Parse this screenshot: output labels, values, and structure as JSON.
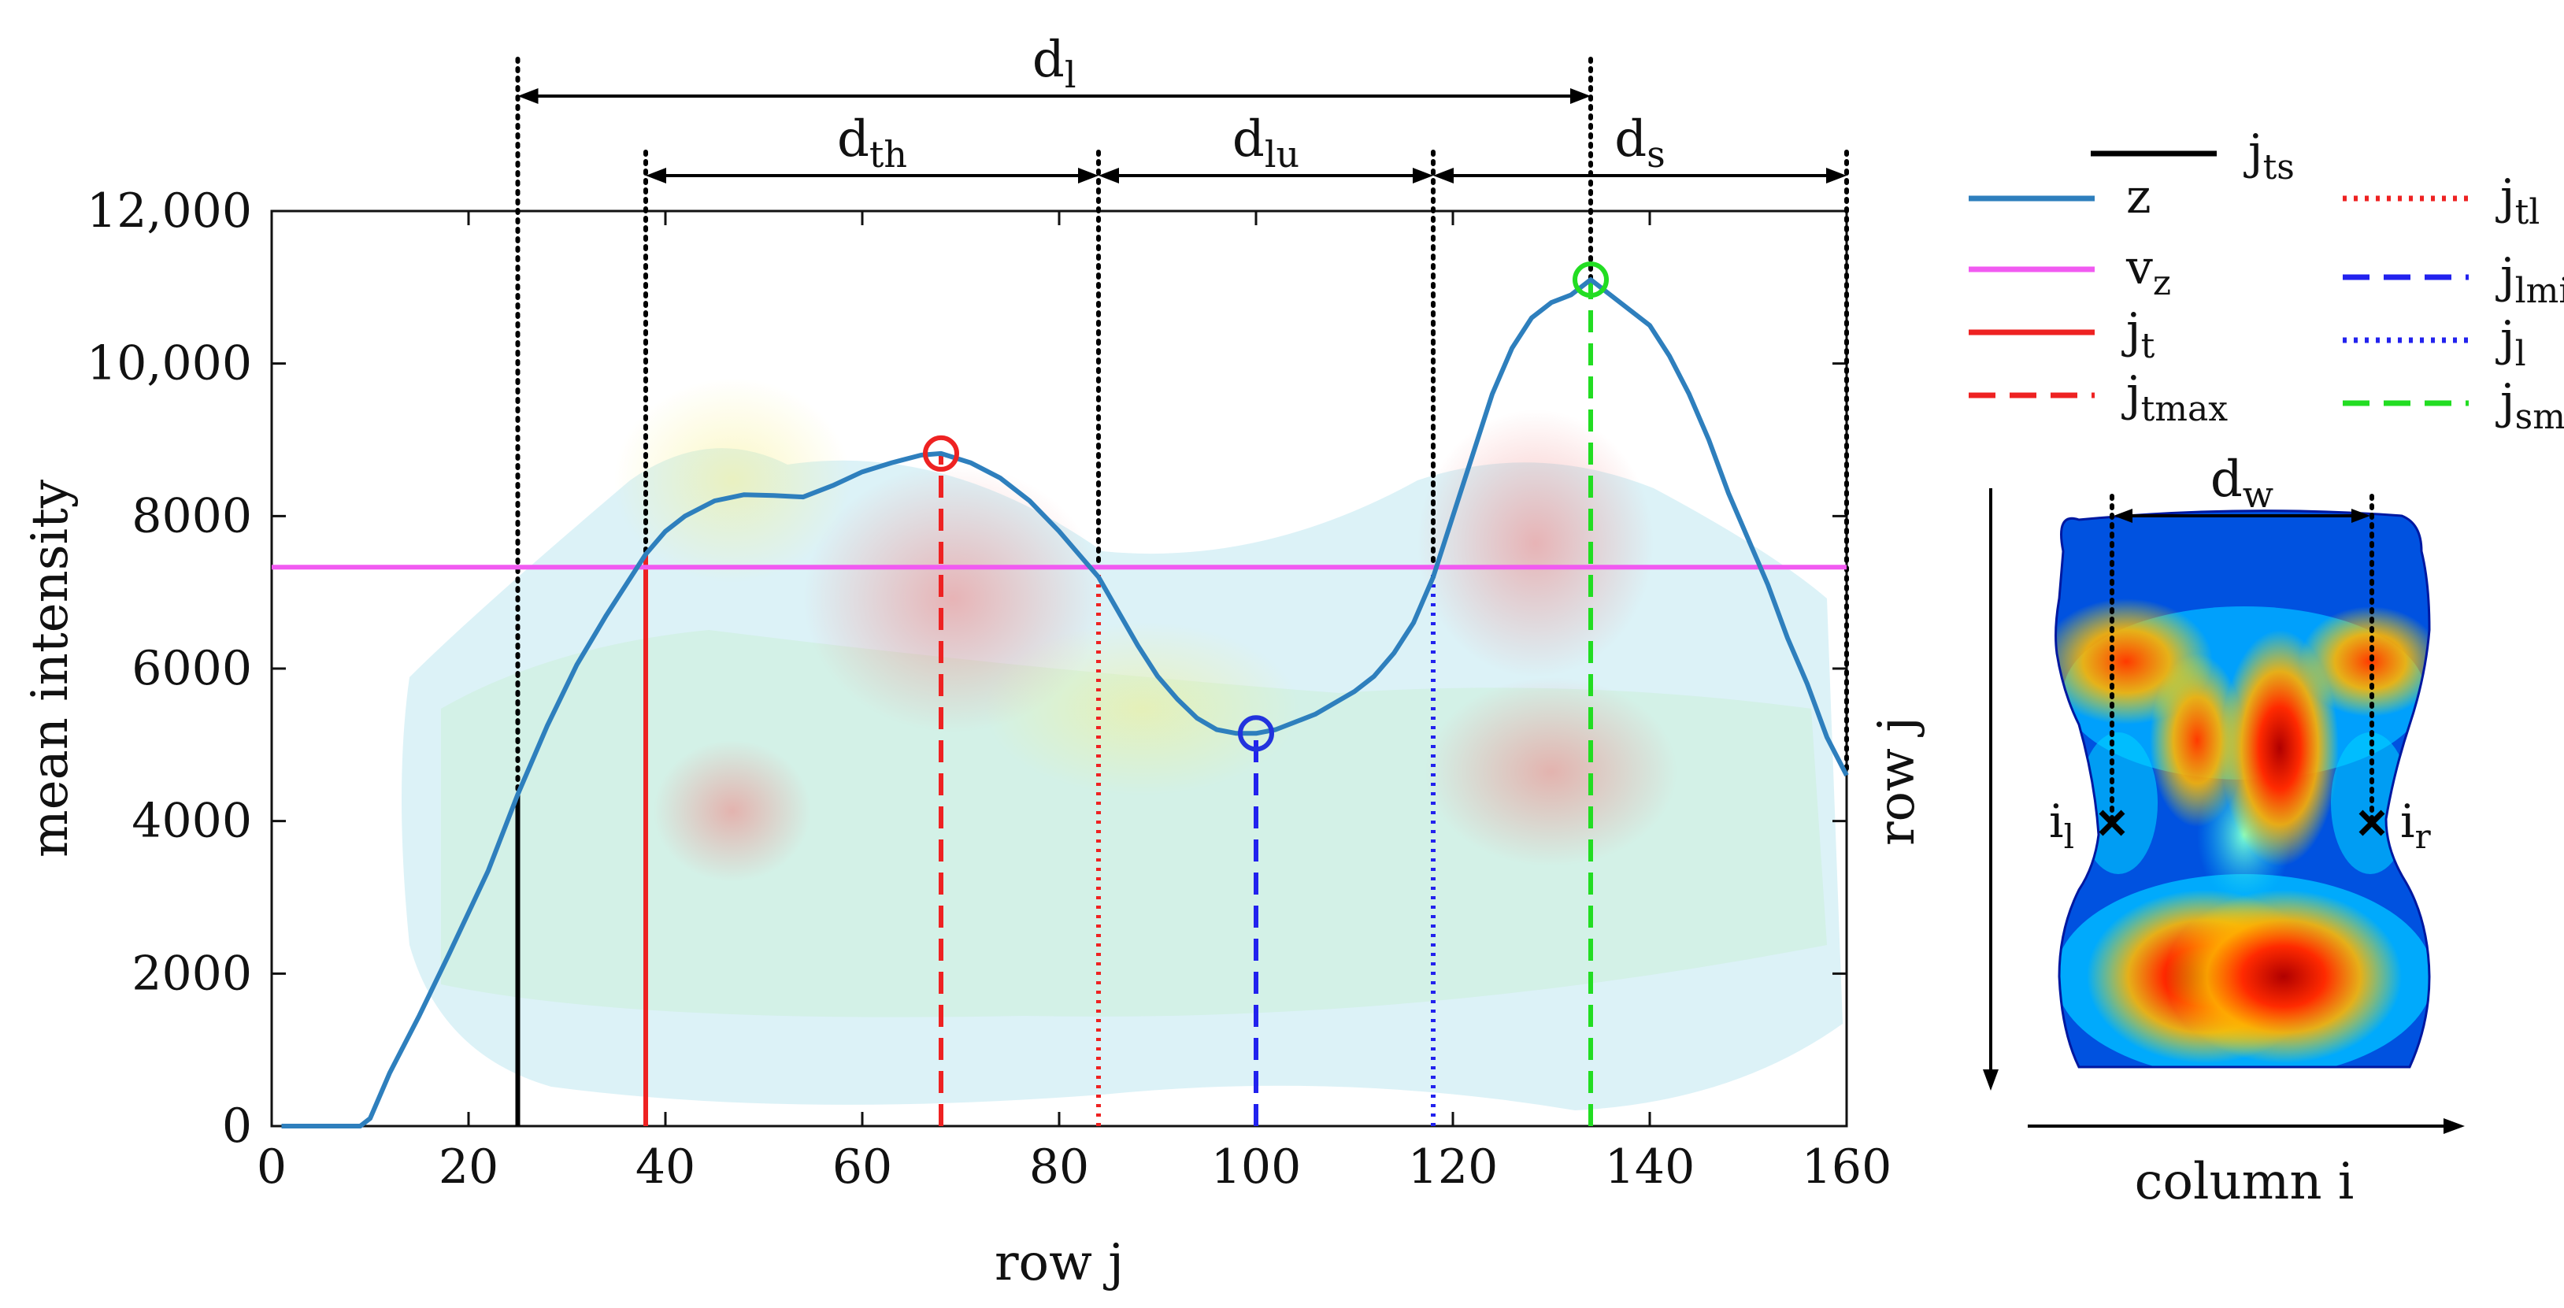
{
  "chart_data": [
    {
      "type": "line",
      "title": "",
      "xlabel": "row j",
      "ylabel": "mean intensity",
      "xlim": [
        0,
        160
      ],
      "ylim": [
        0,
        12000
      ],
      "xticks": [
        0,
        20,
        40,
        60,
        80,
        100,
        120,
        140,
        160
      ],
      "yticks": [
        0,
        2000,
        4000,
        6000,
        8000,
        10000,
        12000
      ],
      "xtick_labels": [
        "0",
        "20",
        "40",
        "60",
        "80",
        "100",
        "120",
        "140",
        "160"
      ],
      "ytick_labels": [
        "0",
        "2000",
        "4000",
        "6000",
        "8000",
        "10,000",
        "12,000"
      ],
      "grid": false,
      "series": [
        {
          "name": "z",
          "color": "#2e7fbd",
          "x": [
            1,
            6,
            9,
            10,
            12,
            15,
            18,
            20,
            22,
            25,
            28,
            31,
            34,
            36,
            38,
            40,
            42,
            45,
            48,
            51,
            54,
            57,
            60,
            63,
            66,
            68,
            71,
            74,
            77,
            80,
            82,
            84,
            86,
            88,
            90,
            92,
            94,
            96,
            98,
            100,
            102,
            104,
            106,
            108,
            110,
            112,
            114,
            116,
            118,
            120,
            122,
            124,
            126,
            128,
            130,
            132,
            134,
            136,
            138,
            140,
            142,
            144,
            146,
            148,
            150,
            152,
            154,
            156,
            158,
            160
          ],
          "y": [
            0,
            0,
            0,
            100,
            700,
            1450,
            2250,
            2800,
            3350,
            4350,
            5250,
            6050,
            6700,
            7100,
            7500,
            7800,
            8000,
            8200,
            8280,
            8270,
            8250,
            8400,
            8580,
            8700,
            8800,
            8820,
            8700,
            8500,
            8200,
            7800,
            7500,
            7200,
            6750,
            6300,
            5900,
            5600,
            5350,
            5200,
            5150,
            5150,
            5200,
            5300,
            5400,
            5550,
            5700,
            5900,
            6200,
            6600,
            7200,
            8000,
            8800,
            9600,
            10200,
            10600,
            10800,
            10900,
            11100,
            10900,
            10700,
            10500,
            10100,
            9600,
            9000,
            8300,
            7700,
            7100,
            6400,
            5800,
            5100,
            4600
          ]
        },
        {
          "name": "v_z",
          "color": "#f15af1",
          "type": "hline",
          "y": 7330
        },
        {
          "name": "j_ts",
          "color": "#000000",
          "style": "solid",
          "type": "vline",
          "x": 25
        },
        {
          "name": "j_t",
          "color": "#ee2222",
          "style": "solid",
          "type": "vline",
          "x": 38
        },
        {
          "name": "j_tmax",
          "color": "#ee2222",
          "style": "dashed",
          "type": "vline",
          "x": 68
        },
        {
          "name": "j_tl",
          "color": "#ee2222",
          "style": "dotted",
          "type": "vline",
          "x": 84
        },
        {
          "name": "j_lmin",
          "color": "#2222ee",
          "style": "dashed",
          "type": "vline",
          "x": 100
        },
        {
          "name": "j_l",
          "color": "#2222ee",
          "style": "dotted",
          "type": "vline",
          "x": 118
        },
        {
          "name": "j_smax",
          "color": "#22dd22",
          "style": "dashed",
          "type": "vline",
          "x": 134
        }
      ],
      "markers": [
        {
          "name": "tooth-peak",
          "x": 68,
          "y": 8820,
          "color": "#ee2222"
        },
        {
          "name": "lumbar-min",
          "x": 100,
          "y": 5150,
          "color": "#2233dd"
        },
        {
          "name": "sacral-peak",
          "x": 134,
          "y": 11100,
          "color": "#22dd22"
        }
      ],
      "spans": [
        {
          "label_base": "d",
          "label_sub": "l",
          "from": 25,
          "to": 134,
          "row": 0
        },
        {
          "label_base": "d",
          "label_sub": "th",
          "from": 38,
          "to": 84,
          "row": 1
        },
        {
          "label_base": "d",
          "label_sub": "lu",
          "from": 84,
          "to": 118,
          "row": 1
        },
        {
          "label_base": "d",
          "label_sub": "s",
          "from": 118,
          "to": 160,
          "row": 1
        }
      ],
      "legend": {
        "placement": "right",
        "entries": [
          {
            "base": "j",
            "sub": "ts",
            "color": "#000000",
            "style": "solid"
          },
          {
            "base": "z",
            "sub": "",
            "color": "#2e7fbd",
            "style": "solid"
          },
          {
            "base": "j",
            "sub": "tl",
            "color": "#ee2222",
            "style": "dotted"
          },
          {
            "base": "v",
            "sub": "z",
            "color": "#f15af1",
            "style": "solid"
          },
          {
            "base": "j",
            "sub": "lmin",
            "color": "#2222ee",
            "style": "dashed"
          },
          {
            "base": "j",
            "sub": "t",
            "color": "#ee2222",
            "style": "solid"
          },
          {
            "base": "j",
            "sub": "l",
            "color": "#2222ee",
            "style": "dotted"
          },
          {
            "base": "j",
            "sub": "tmax",
            "color": "#ee2222",
            "style": "dashed"
          },
          {
            "base": "j",
            "sub": "smax",
            "color": "#22dd22",
            "style": "dashed"
          }
        ]
      }
    },
    {
      "type": "heatmap",
      "xlabel": "column i",
      "ylabel": "row j",
      "width_label": {
        "base": "d",
        "sub": "w"
      },
      "points": [
        {
          "base": "i",
          "sub": "l"
        },
        {
          "base": "i",
          "sub": "r"
        }
      ]
    }
  ]
}
